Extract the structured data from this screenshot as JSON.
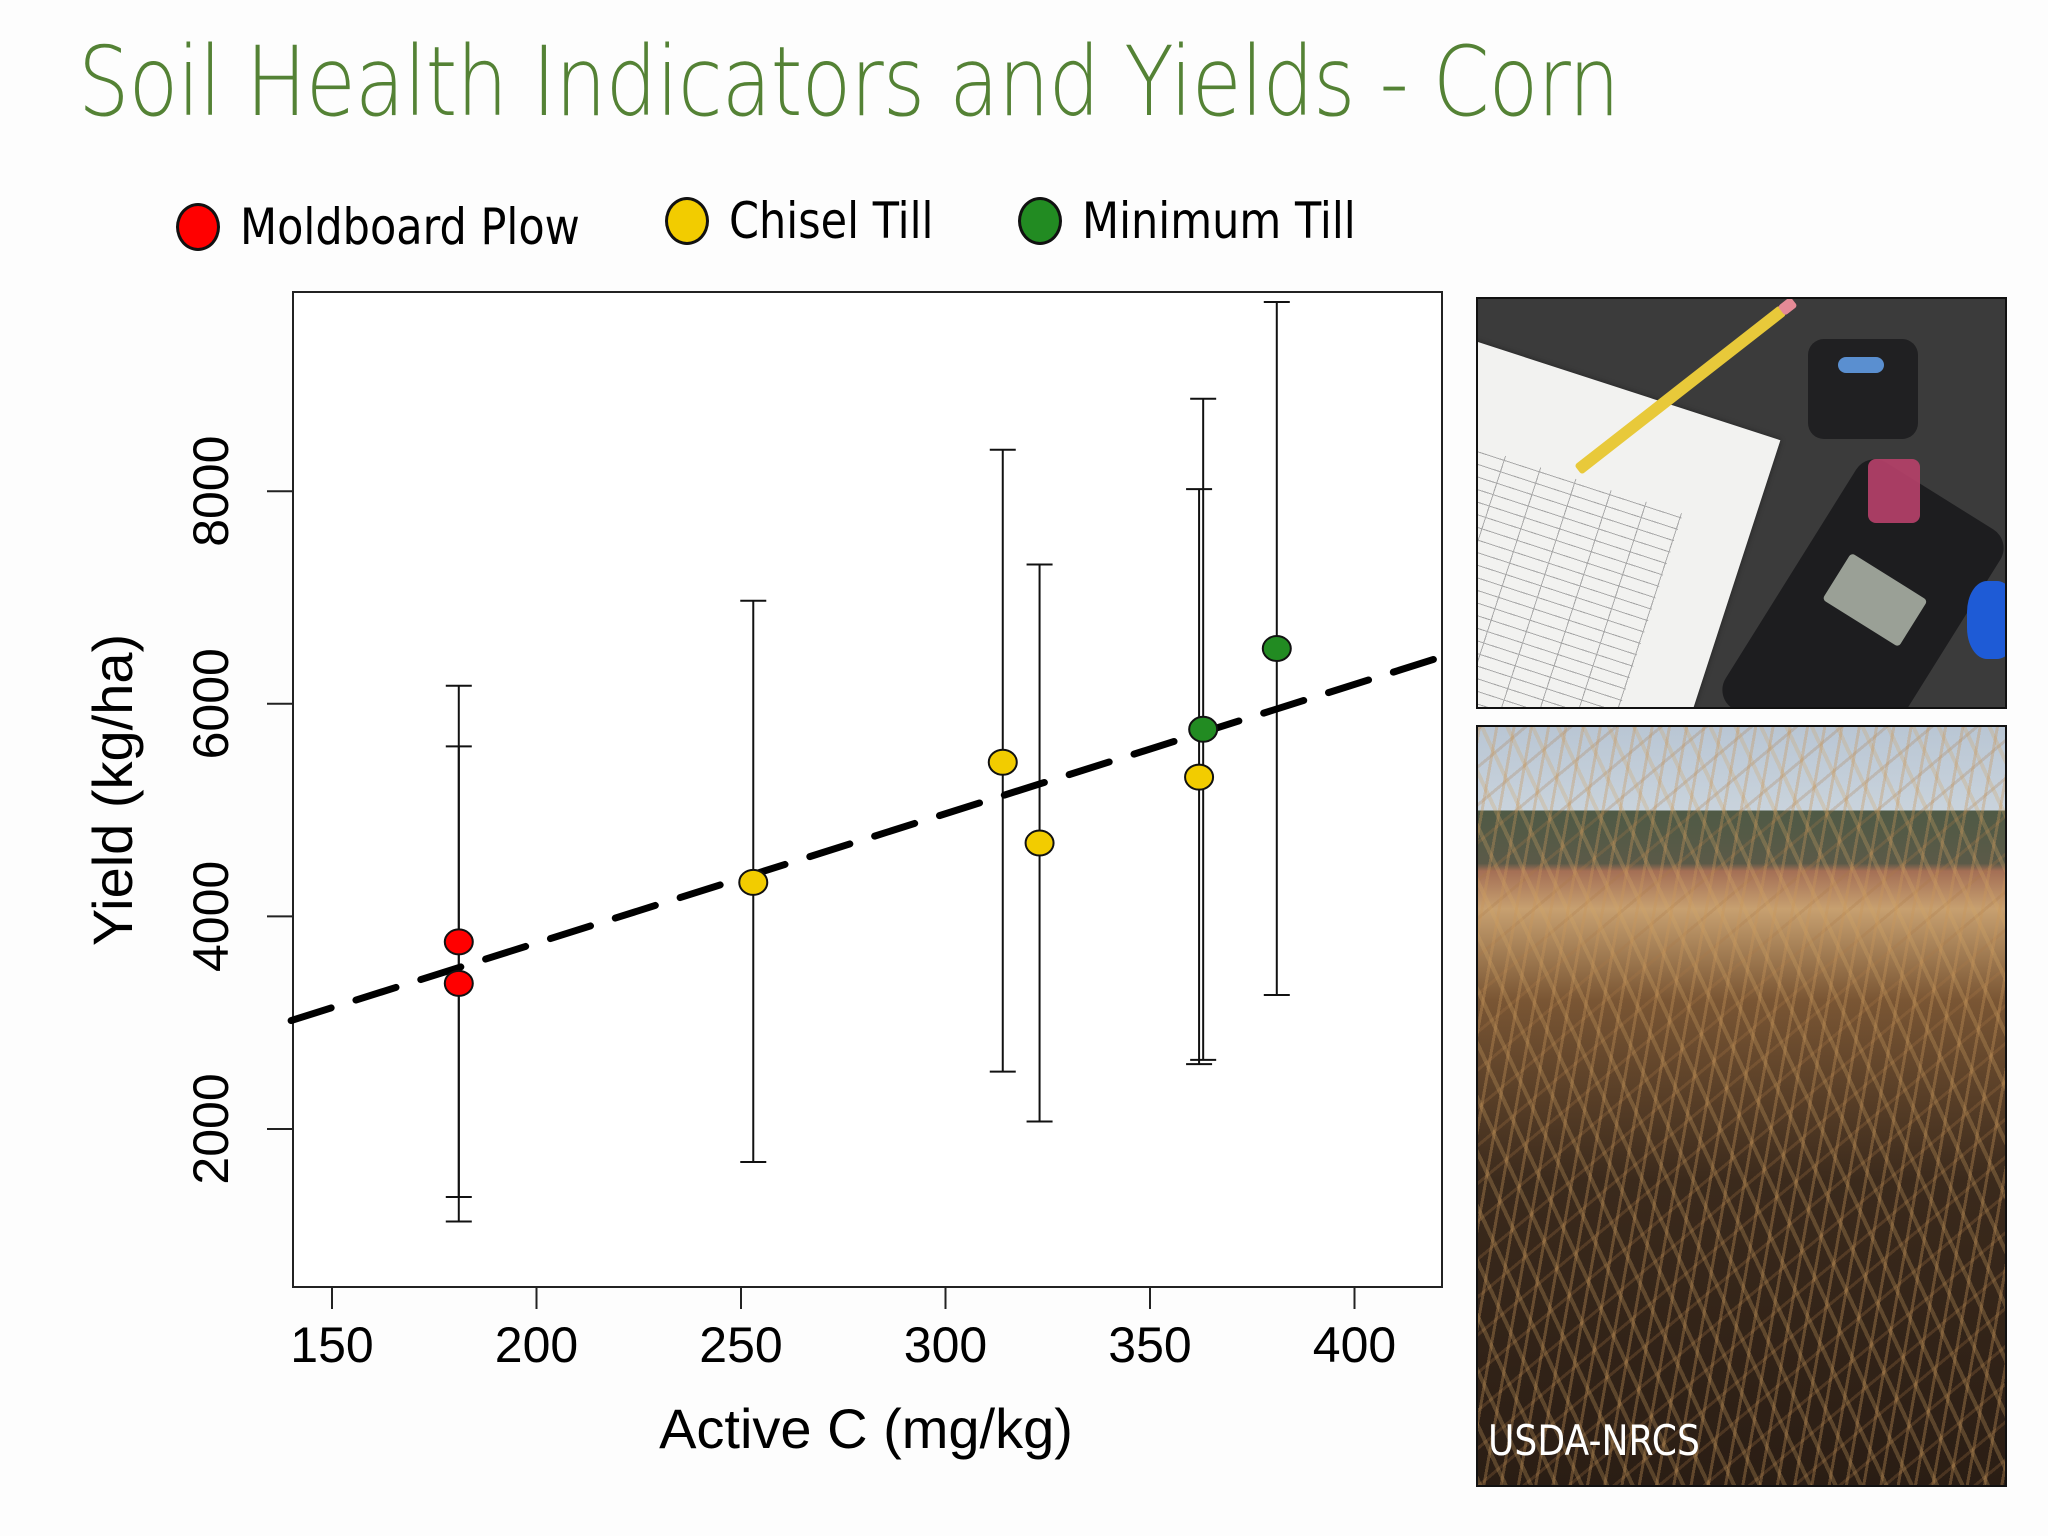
{
  "slide": {
    "title": "Soil Health Indicators and Yields - Corn",
    "title_color": "#548235",
    "background": "#fdfdfd"
  },
  "legend": [
    {
      "label": "Moldboard Plow",
      "color": "#ff0000"
    },
    {
      "label": "Chisel Till",
      "color": "#f2cc00"
    },
    {
      "label": "Minimum Till",
      "color": "#228b22"
    }
  ],
  "photos": {
    "top": {
      "description": "lab-test-sheet-and-colorimeter"
    },
    "bottom": {
      "description": "corn-residue-field",
      "credit": "USDA-NRCS"
    }
  },
  "chart_data": {
    "type": "scatter",
    "title": "",
    "xlabel": "Active C (mg/kg)",
    "ylabel": "Yield (kg/ha)",
    "xlim": [
      140,
      423
    ],
    "ylim": [
      480,
      9850
    ],
    "xticks": [
      150,
      200,
      250,
      300,
      350,
      400
    ],
    "yticks": [
      2000,
      4000,
      6000,
      8000
    ],
    "grid": false,
    "legend_position": "top",
    "series": [
      {
        "name": "Moldboard Plow",
        "color": "#ff0000",
        "points": [
          {
            "x": 181,
            "y": 3760,
            "err_low": 1360,
            "err_high": 5600
          },
          {
            "x": 181,
            "y": 3370,
            "err_low": 1130,
            "err_high": 6170
          }
        ]
      },
      {
        "name": "Chisel Till",
        "color": "#f2cc00",
        "points": [
          {
            "x": 253,
            "y": 4320,
            "err_low": 1690,
            "err_high": 6970
          },
          {
            "x": 314,
            "y": 5450,
            "err_low": 2540,
            "err_high": 8390
          },
          {
            "x": 323,
            "y": 4690,
            "err_low": 2070,
            "err_high": 7310
          },
          {
            "x": 362,
            "y": 5310,
            "err_low": 2610,
            "err_high": 8020
          }
        ]
      },
      {
        "name": "Minimum Till",
        "color": "#228b22",
        "points": [
          {
            "x": 363,
            "y": 5760,
            "err_low": 2650,
            "err_high": 8870
          },
          {
            "x": 381,
            "y": 6520,
            "err_low": 3260,
            "err_high": 9780
          }
        ]
      }
    ],
    "trendline": {
      "style": "dashed",
      "color": "#000000",
      "from": {
        "x": 140,
        "y": 3020
      },
      "to": {
        "x": 422,
        "y": 6450
      }
    }
  }
}
